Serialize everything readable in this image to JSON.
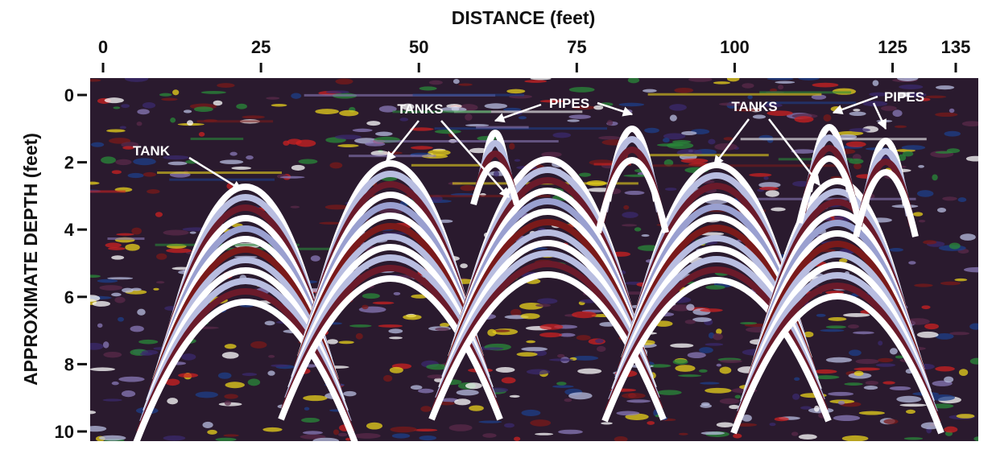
{
  "chart_data": {
    "type": "image",
    "x_label": "DISTANCE (feet)",
    "y_label": "APPROXIMATE DEPTH (feet)",
    "xlim": [
      0,
      135
    ],
    "xticks": [
      0,
      25,
      50,
      75,
      100,
      125,
      135
    ],
    "ylim": [
      0,
      10
    ],
    "yticks": [
      0,
      2,
      4,
      6,
      8,
      10
    ],
    "annotations": [
      "TANK",
      "TANKS",
      "PIPES",
      "TANKS",
      "PIPES"
    ]
  }
}
